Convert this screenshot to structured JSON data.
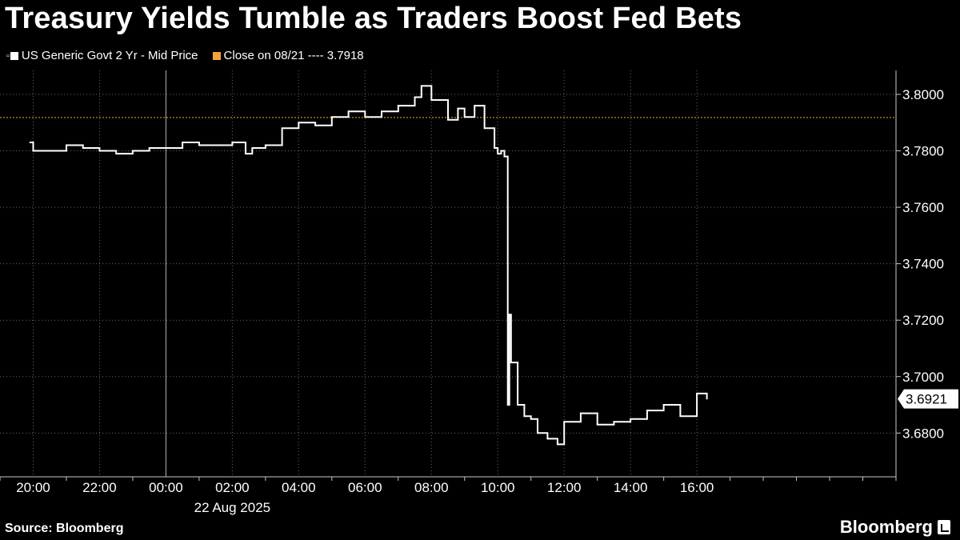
{
  "title": "Treasury Yields Tumble as Traders Boost Fed Bets",
  "legend": [
    {
      "label": "US Generic Govt 2 Yr - Mid Price",
      "color": "#ffffff"
    },
    {
      "label": "Close on 08/21 ---- 3.7918",
      "color": "#f4a33a"
    }
  ],
  "source": "Source: Bloomberg",
  "brand": "Bloomberg",
  "chart_data": {
    "type": "line",
    "series": [
      {
        "name": "US Generic Govt 2 Yr - Mid Price",
        "color": "#ffffff",
        "x": [
          19.9,
          20.0,
          20.5,
          21.0,
          21.5,
          22.0,
          22.5,
          23.0,
          23.5,
          24.0,
          24.5,
          25.0,
          25.5,
          26.0,
          26.4,
          26.6,
          27.0,
          27.5,
          28.0,
          28.5,
          29.0,
          29.5,
          30.0,
          30.5,
          31.0,
          31.5,
          31.7,
          32.0,
          32.5,
          32.8,
          33.0,
          33.3,
          33.6,
          33.9,
          34.0,
          34.1,
          34.2,
          34.3,
          34.35,
          34.4,
          34.6,
          34.8,
          35.0,
          35.2,
          35.5,
          35.8,
          36.0,
          36.5,
          37.0,
          37.5,
          38.0,
          38.5,
          39.0,
          39.5,
          40.0,
          40.3
        ],
        "y": [
          3.783,
          3.78,
          3.78,
          3.782,
          3.781,
          3.78,
          3.779,
          3.78,
          3.781,
          3.781,
          3.783,
          3.782,
          3.782,
          3.783,
          3.779,
          3.781,
          3.782,
          3.788,
          3.79,
          3.789,
          3.792,
          3.794,
          3.792,
          3.794,
          3.796,
          3.799,
          3.803,
          3.798,
          3.791,
          3.795,
          3.792,
          3.796,
          3.788,
          3.781,
          3.779,
          3.78,
          3.778,
          3.69,
          3.722,
          3.705,
          3.69,
          3.686,
          3.685,
          3.68,
          3.678,
          3.676,
          3.684,
          3.687,
          3.683,
          3.684,
          3.685,
          3.688,
          3.69,
          3.686,
          3.694,
          3.6921
        ]
      }
    ],
    "reference_line": {
      "label": "Close on 08/21",
      "value": 3.7918,
      "color": "#f4a33a"
    },
    "last_value_label": "3.6921",
    "x_ticks": [
      20,
      22,
      24,
      26,
      28,
      30,
      32,
      34,
      36,
      38,
      40
    ],
    "x_tick_labels": [
      "20:00",
      "22:00",
      "00:00",
      "02:00",
      "04:00",
      "06:00",
      "08:00",
      "10:00",
      "12:00",
      "14:00",
      "16:00"
    ],
    "x_sublabel": "22 Aug 2025",
    "xlim": [
      19,
      46
    ],
    "y_ticks": [
      3.68,
      3.7,
      3.72,
      3.74,
      3.76,
      3.78,
      3.8
    ],
    "y_tick_labels": [
      "3.6800",
      "3.7000",
      "3.7200",
      "3.7400",
      "3.7600",
      "3.7800",
      "3.8000"
    ],
    "ylim": [
      3.6645,
      3.8085
    ],
    "grid": true
  }
}
